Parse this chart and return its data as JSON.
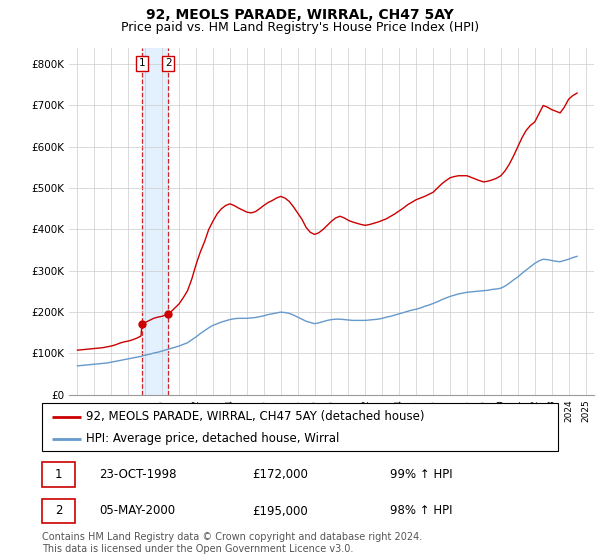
{
  "title": "92, MEOLS PARADE, WIRRAL, CH47 5AY",
  "subtitle": "Price paid vs. HM Land Registry's House Price Index (HPI)",
  "ylim": [
    0,
    840000
  ],
  "yticks": [
    0,
    100000,
    200000,
    300000,
    400000,
    500000,
    600000,
    700000,
    800000
  ],
  "ytick_labels": [
    "£0",
    "£100K",
    "£200K",
    "£300K",
    "£400K",
    "£500K",
    "£600K",
    "£700K",
    "£800K"
  ],
  "legend_entries": [
    "92, MEOLS PARADE, WIRRAL, CH47 5AY (detached house)",
    "HPI: Average price, detached house, Wirral"
  ],
  "sale_points": [
    {
      "label": "1",
      "date": "23-OCT-1998",
      "price": 172000,
      "pct": "99%",
      "dir": "↑",
      "x": 1998.81
    },
    {
      "label": "2",
      "date": "05-MAY-2000",
      "price": 195000,
      "pct": "98%",
      "dir": "↑",
      "x": 2000.35
    }
  ],
  "table_rows": [
    [
      "1",
      "23-OCT-1998",
      "£172,000",
      "99% ↑ HPI"
    ],
    [
      "2",
      "05-MAY-2000",
      "£195,000",
      "98% ↑ HPI"
    ]
  ],
  "footnote": "Contains HM Land Registry data © Crown copyright and database right 2024.\nThis data is licensed under the Open Government Licence v3.0.",
  "red_color": "#cc0000",
  "blue_color": "#6699cc",
  "shade_color": "#ddeeff",
  "grid_color": "#cccccc",
  "title_fontsize": 10,
  "subtitle_fontsize": 9,
  "tick_fontsize": 7.5,
  "legend_fontsize": 8.5,
  "table_fontsize": 8.5,
  "footnote_fontsize": 7,
  "red_hpi_data": [
    [
      1995.0,
      108000
    ],
    [
      1995.25,
      109000
    ],
    [
      1995.5,
      110000
    ],
    [
      1995.75,
      111000
    ],
    [
      1996.0,
      112000
    ],
    [
      1996.25,
      113000
    ],
    [
      1996.5,
      114000
    ],
    [
      1996.75,
      116000
    ],
    [
      1997.0,
      118000
    ],
    [
      1997.25,
      121000
    ],
    [
      1997.5,
      125000
    ],
    [
      1997.75,
      128000
    ],
    [
      1998.0,
      130000
    ],
    [
      1998.25,
      133000
    ],
    [
      1998.5,
      137000
    ],
    [
      1998.75,
      142000
    ],
    [
      1998.81,
      172000
    ],
    [
      1999.0,
      175000
    ],
    [
      1999.25,
      180000
    ],
    [
      1999.5,
      185000
    ],
    [
      1999.75,
      188000
    ],
    [
      2000.0,
      190000
    ],
    [
      2000.35,
      195000
    ],
    [
      2000.5,
      200000
    ],
    [
      2000.75,
      210000
    ],
    [
      2001.0,
      220000
    ],
    [
      2001.25,
      235000
    ],
    [
      2001.5,
      252000
    ],
    [
      2001.75,
      280000
    ],
    [
      2002.0,
      315000
    ],
    [
      2002.25,
      345000
    ],
    [
      2002.5,
      370000
    ],
    [
      2002.75,
      400000
    ],
    [
      2003.0,
      420000
    ],
    [
      2003.25,
      438000
    ],
    [
      2003.5,
      450000
    ],
    [
      2003.75,
      458000
    ],
    [
      2004.0,
      462000
    ],
    [
      2004.25,
      458000
    ],
    [
      2004.5,
      452000
    ],
    [
      2004.75,
      447000
    ],
    [
      2005.0,
      442000
    ],
    [
      2005.25,
      440000
    ],
    [
      2005.5,
      443000
    ],
    [
      2005.75,
      450000
    ],
    [
      2006.0,
      458000
    ],
    [
      2006.25,
      465000
    ],
    [
      2006.5,
      470000
    ],
    [
      2006.75,
      476000
    ],
    [
      2007.0,
      480000
    ],
    [
      2007.25,
      476000
    ],
    [
      2007.5,
      468000
    ],
    [
      2007.75,
      455000
    ],
    [
      2008.0,
      440000
    ],
    [
      2008.25,
      425000
    ],
    [
      2008.5,
      405000
    ],
    [
      2008.75,
      393000
    ],
    [
      2009.0,
      388000
    ],
    [
      2009.25,
      392000
    ],
    [
      2009.5,
      400000
    ],
    [
      2009.75,
      410000
    ],
    [
      2010.0,
      420000
    ],
    [
      2010.25,
      428000
    ],
    [
      2010.5,
      432000
    ],
    [
      2010.75,
      428000
    ],
    [
      2011.0,
      422000
    ],
    [
      2011.25,
      418000
    ],
    [
      2011.5,
      415000
    ],
    [
      2011.75,
      412000
    ],
    [
      2012.0,
      410000
    ],
    [
      2012.25,
      412000
    ],
    [
      2012.5,
      415000
    ],
    [
      2012.75,
      418000
    ],
    [
      2013.0,
      422000
    ],
    [
      2013.25,
      426000
    ],
    [
      2013.5,
      432000
    ],
    [
      2013.75,
      438000
    ],
    [
      2014.0,
      445000
    ],
    [
      2014.25,
      452000
    ],
    [
      2014.5,
      460000
    ],
    [
      2014.75,
      466000
    ],
    [
      2015.0,
      472000
    ],
    [
      2015.25,
      476000
    ],
    [
      2015.5,
      480000
    ],
    [
      2015.75,
      485000
    ],
    [
      2016.0,
      490000
    ],
    [
      2016.25,
      500000
    ],
    [
      2016.5,
      510000
    ],
    [
      2016.75,
      518000
    ],
    [
      2017.0,
      525000
    ],
    [
      2017.25,
      528000
    ],
    [
      2017.5,
      530000
    ],
    [
      2017.75,
      530000
    ],
    [
      2018.0,
      530000
    ],
    [
      2018.25,
      526000
    ],
    [
      2018.5,
      522000
    ],
    [
      2018.75,
      518000
    ],
    [
      2019.0,
      515000
    ],
    [
      2019.25,
      517000
    ],
    [
      2019.5,
      520000
    ],
    [
      2019.75,
      524000
    ],
    [
      2020.0,
      530000
    ],
    [
      2020.25,
      542000
    ],
    [
      2020.5,
      558000
    ],
    [
      2020.75,
      578000
    ],
    [
      2021.0,
      600000
    ],
    [
      2021.25,
      622000
    ],
    [
      2021.5,
      640000
    ],
    [
      2021.75,
      652000
    ],
    [
      2022.0,
      660000
    ],
    [
      2022.25,
      680000
    ],
    [
      2022.5,
      700000
    ],
    [
      2022.75,
      696000
    ],
    [
      2023.0,
      690000
    ],
    [
      2023.25,
      686000
    ],
    [
      2023.5,
      682000
    ],
    [
      2023.75,
      696000
    ],
    [
      2024.0,
      715000
    ],
    [
      2024.25,
      724000
    ],
    [
      2024.5,
      730000
    ]
  ],
  "blue_hpi_data": [
    [
      1995.0,
      70000
    ],
    [
      1995.25,
      71000
    ],
    [
      1995.5,
      72000
    ],
    [
      1995.75,
      73000
    ],
    [
      1996.0,
      74000
    ],
    [
      1996.25,
      75000
    ],
    [
      1996.5,
      76000
    ],
    [
      1996.75,
      77000
    ],
    [
      1997.0,
      79000
    ],
    [
      1997.25,
      81000
    ],
    [
      1997.5,
      83000
    ],
    [
      1997.75,
      85000
    ],
    [
      1998.0,
      87000
    ],
    [
      1998.25,
      89000
    ],
    [
      1998.5,
      91000
    ],
    [
      1998.75,
      93000
    ],
    [
      1999.0,
      96000
    ],
    [
      1999.25,
      98000
    ],
    [
      1999.5,
      101000
    ],
    [
      1999.75,
      103000
    ],
    [
      2000.0,
      106000
    ],
    [
      2000.25,
      109000
    ],
    [
      2000.5,
      112000
    ],
    [
      2000.75,
      115000
    ],
    [
      2001.0,
      118000
    ],
    [
      2001.25,
      122000
    ],
    [
      2001.5,
      126000
    ],
    [
      2001.75,
      133000
    ],
    [
      2002.0,
      140000
    ],
    [
      2002.25,
      148000
    ],
    [
      2002.5,
      155000
    ],
    [
      2002.75,
      162000
    ],
    [
      2003.0,
      168000
    ],
    [
      2003.25,
      172000
    ],
    [
      2003.5,
      176000
    ],
    [
      2003.75,
      179000
    ],
    [
      2004.0,
      182000
    ],
    [
      2004.25,
      184000
    ],
    [
      2004.5,
      185000
    ],
    [
      2004.75,
      185000
    ],
    [
      2005.0,
      185000
    ],
    [
      2005.25,
      186000
    ],
    [
      2005.5,
      187000
    ],
    [
      2005.75,
      189000
    ],
    [
      2006.0,
      191000
    ],
    [
      2006.25,
      194000
    ],
    [
      2006.5,
      196000
    ],
    [
      2006.75,
      198000
    ],
    [
      2007.0,
      200000
    ],
    [
      2007.25,
      199000
    ],
    [
      2007.5,
      197000
    ],
    [
      2007.75,
      193000
    ],
    [
      2008.0,
      188000
    ],
    [
      2008.25,
      183000
    ],
    [
      2008.5,
      178000
    ],
    [
      2008.75,
      175000
    ],
    [
      2009.0,
      172000
    ],
    [
      2009.25,
      174000
    ],
    [
      2009.5,
      177000
    ],
    [
      2009.75,
      180000
    ],
    [
      2010.0,
      182000
    ],
    [
      2010.25,
      183000
    ],
    [
      2010.5,
      183000
    ],
    [
      2010.75,
      182000
    ],
    [
      2011.0,
      181000
    ],
    [
      2011.25,
      180000
    ],
    [
      2011.5,
      180000
    ],
    [
      2011.75,
      180000
    ],
    [
      2012.0,
      180000
    ],
    [
      2012.25,
      181000
    ],
    [
      2012.5,
      182000
    ],
    [
      2012.75,
      183000
    ],
    [
      2013.0,
      185000
    ],
    [
      2013.25,
      188000
    ],
    [
      2013.5,
      190000
    ],
    [
      2013.75,
      193000
    ],
    [
      2014.0,
      196000
    ],
    [
      2014.25,
      199000
    ],
    [
      2014.5,
      202000
    ],
    [
      2014.75,
      205000
    ],
    [
      2015.0,
      207000
    ],
    [
      2015.25,
      210000
    ],
    [
      2015.5,
      214000
    ],
    [
      2015.75,
      217000
    ],
    [
      2016.0,
      221000
    ],
    [
      2016.25,
      225000
    ],
    [
      2016.5,
      230000
    ],
    [
      2016.75,
      234000
    ],
    [
      2017.0,
      238000
    ],
    [
      2017.25,
      241000
    ],
    [
      2017.5,
      244000
    ],
    [
      2017.75,
      246000
    ],
    [
      2018.0,
      248000
    ],
    [
      2018.25,
      249000
    ],
    [
      2018.5,
      250000
    ],
    [
      2018.75,
      251000
    ],
    [
      2019.0,
      252000
    ],
    [
      2019.25,
      253000
    ],
    [
      2019.5,
      255000
    ],
    [
      2019.75,
      256000
    ],
    [
      2020.0,
      258000
    ],
    [
      2020.25,
      263000
    ],
    [
      2020.5,
      270000
    ],
    [
      2020.75,
      278000
    ],
    [
      2021.0,
      285000
    ],
    [
      2021.25,
      294000
    ],
    [
      2021.5,
      302000
    ],
    [
      2021.75,
      310000
    ],
    [
      2022.0,
      318000
    ],
    [
      2022.25,
      324000
    ],
    [
      2022.5,
      328000
    ],
    [
      2022.75,
      327000
    ],
    [
      2023.0,
      325000
    ],
    [
      2023.25,
      323000
    ],
    [
      2023.5,
      322000
    ],
    [
      2023.75,
      325000
    ],
    [
      2024.0,
      328000
    ],
    [
      2024.25,
      332000
    ],
    [
      2024.5,
      335000
    ]
  ]
}
